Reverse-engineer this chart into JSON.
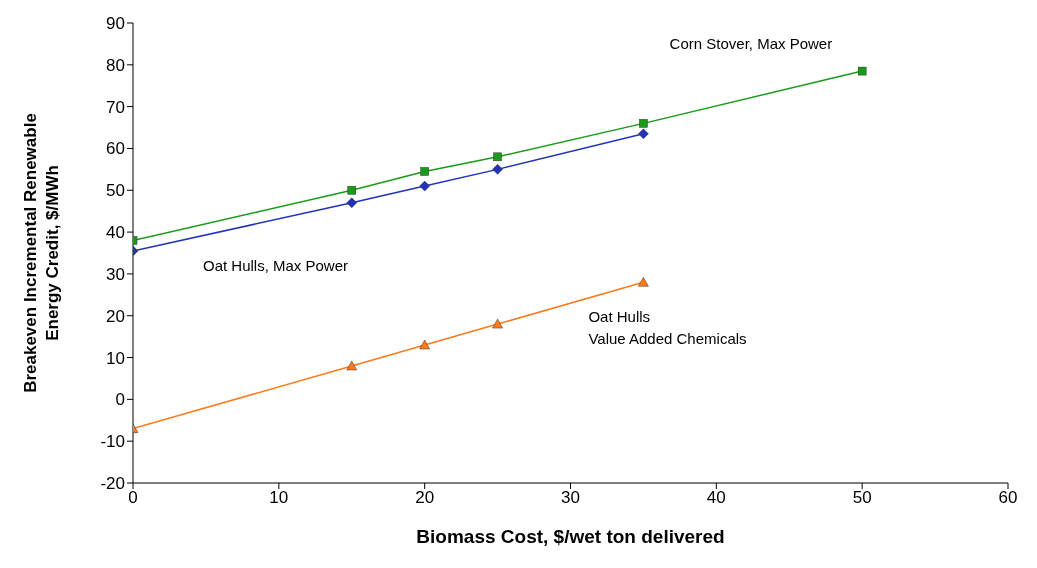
{
  "chart_data": {
    "type": "line",
    "xlabel": "Biomass Cost, $/wet ton delivered",
    "ylabel": "Breakeven Incremental Renewable Energy Credit, $/MWh",
    "xlim": [
      0,
      60
    ],
    "xticks": [
      0,
      10,
      20,
      30,
      40,
      50,
      60
    ],
    "ylim": [
      -20,
      90
    ],
    "yticks": [
      -20,
      -10,
      0,
      10,
      20,
      30,
      40,
      50,
      60,
      70,
      80,
      90
    ],
    "grid": false,
    "series": [
      {
        "name": "Corn Stover, Max Power",
        "color": "#1a9a1a",
        "marker": "square",
        "x": [
          0,
          15,
          20,
          25,
          35,
          50
        ],
        "values": [
          38,
          50,
          54.5,
          58,
          66,
          78.5
        ]
      },
      {
        "name": "Oat Hulls, Max Power",
        "color": "#2233bb",
        "marker": "diamond",
        "x": [
          0,
          15,
          20,
          25,
          35
        ],
        "values": [
          35.5,
          47,
          51,
          55,
          63.5
        ]
      },
      {
        "name": "Oat Hulls\nValue Added Chemicals",
        "color": "#ff7a1a",
        "marker": "triangle",
        "x": [
          0,
          15,
          20,
          25,
          35
        ],
        "values": [
          -7,
          8,
          13,
          18,
          28
        ]
      }
    ]
  }
}
